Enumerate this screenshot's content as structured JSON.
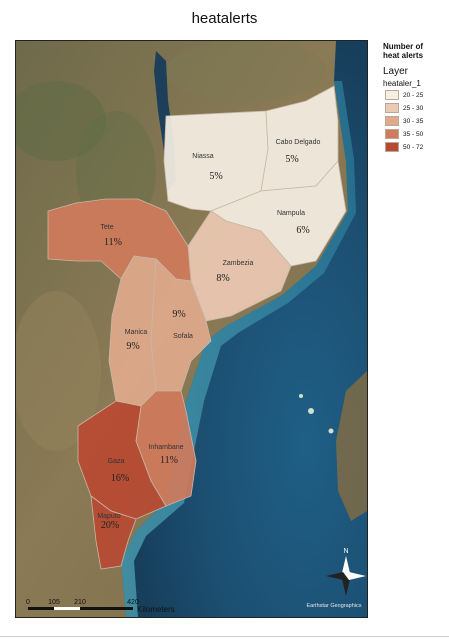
{
  "title": "heatalerts",
  "legend": {
    "heading_line1": "Number of",
    "heading_line2": "heat alerts",
    "layer_label": "Layer",
    "layer_name": "heataler_1",
    "classes": [
      {
        "range": "20 - 25",
        "color": "#f5efe4"
      },
      {
        "range": "25 - 30",
        "color": "#ecc9b3"
      },
      {
        "range": "30 - 35",
        "color": "#e0a98c"
      },
      {
        "range": "35 - 50",
        "color": "#cf7b5c"
      },
      {
        "range": "50 - 72",
        "color": "#b84a33"
      }
    ]
  },
  "provinces": [
    {
      "name": "Niassa",
      "pct": "5%",
      "color": "#f5efe4"
    },
    {
      "name": "Cabo Delgado",
      "pct": "5%",
      "color": "#f5efe4"
    },
    {
      "name": "Nampula",
      "pct": "6%",
      "color": "#f5efe4"
    },
    {
      "name": "Zambezia",
      "pct": "8%",
      "color": "#ecc9b3"
    },
    {
      "name": "Tete",
      "pct": "11%",
      "color": "#cf7b5c"
    },
    {
      "name": "Sofala",
      "pct": "9%",
      "color": "#e0a98c"
    },
    {
      "name": "Manica",
      "pct": "9%",
      "color": "#e0a98c"
    },
    {
      "name": "Inhambane",
      "pct": "11%",
      "color": "#cf7b5c"
    },
    {
      "name": "Gaza",
      "pct": "16%",
      "color": "#b84a33"
    },
    {
      "name": "Maputo",
      "pct": "20%",
      "color": "#b84a33"
    }
  ],
  "scale": {
    "ticks": [
      "0",
      "105",
      "210",
      "420"
    ],
    "unit": "Kilometers"
  },
  "north_label": "N",
  "credit": "Earthstar Geographics"
}
